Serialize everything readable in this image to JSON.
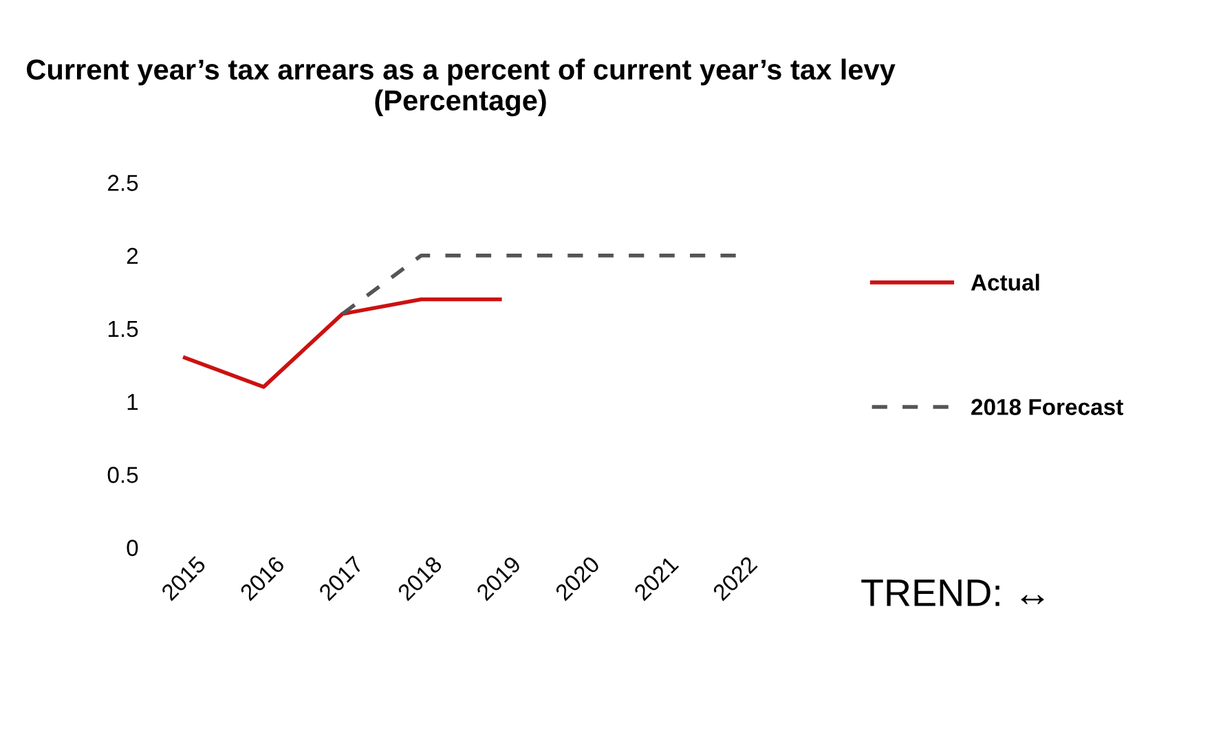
{
  "chart_data": {
    "type": "line",
    "title": "Current year’s tax arrears as a percent of current year’s tax levy (Percentage)",
    "categories": [
      "2015",
      "2016",
      "2017",
      "2018",
      "2019",
      "2020",
      "2021",
      "2022"
    ],
    "series": [
      {
        "name": "Actual",
        "color": "#cc1111",
        "line_style": "solid",
        "values": [
          1.3,
          1.1,
          1.6,
          1.7,
          1.7,
          null,
          null,
          null
        ]
      },
      {
        "name": "2018 Forecast",
        "color": "#555555",
        "line_style": "dashed",
        "values": [
          null,
          null,
          1.6,
          2.0,
          2.0,
          2.0,
          2.0,
          2.0
        ]
      }
    ],
    "ylim": [
      0,
      2.5
    ],
    "yticks": [
      0,
      0.5,
      1,
      1.5,
      2,
      2.5
    ],
    "grid": false,
    "legend": "right",
    "marker": "none",
    "annotations": [
      "TREND: ↔"
    ]
  }
}
